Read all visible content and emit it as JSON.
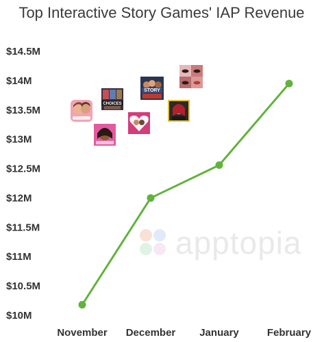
{
  "chart_data": {
    "type": "line",
    "title": "Top Interactive Story Games' IAP Revenue",
    "categories": [
      "November",
      "December",
      "January",
      "February"
    ],
    "series": [
      {
        "values": [
          10.18,
          12.0,
          12.56,
          13.95
        ]
      }
    ],
    "y_tick_labels": [
      "$10M",
      "$10.5M",
      "$11M",
      "$11.5M",
      "$12M",
      "$12.5M",
      "$13M",
      "$13.5M",
      "$14M",
      "$14.5M"
    ],
    "y_ticks": [
      10,
      10.5,
      11,
      11.5,
      12,
      12.5,
      13,
      13.5,
      14,
      14.5
    ],
    "ylim": [
      10,
      14.5
    ],
    "unit": "USD millions",
    "grid": false,
    "line_color": "#62b23c",
    "watermark": "apptopia"
  },
  "app_icons": [
    "episode-icon",
    "choices-icon",
    "chapters-icon",
    "lovelink-icon",
    "story-icon",
    "hollywood-icon",
    "eyes-icon"
  ]
}
